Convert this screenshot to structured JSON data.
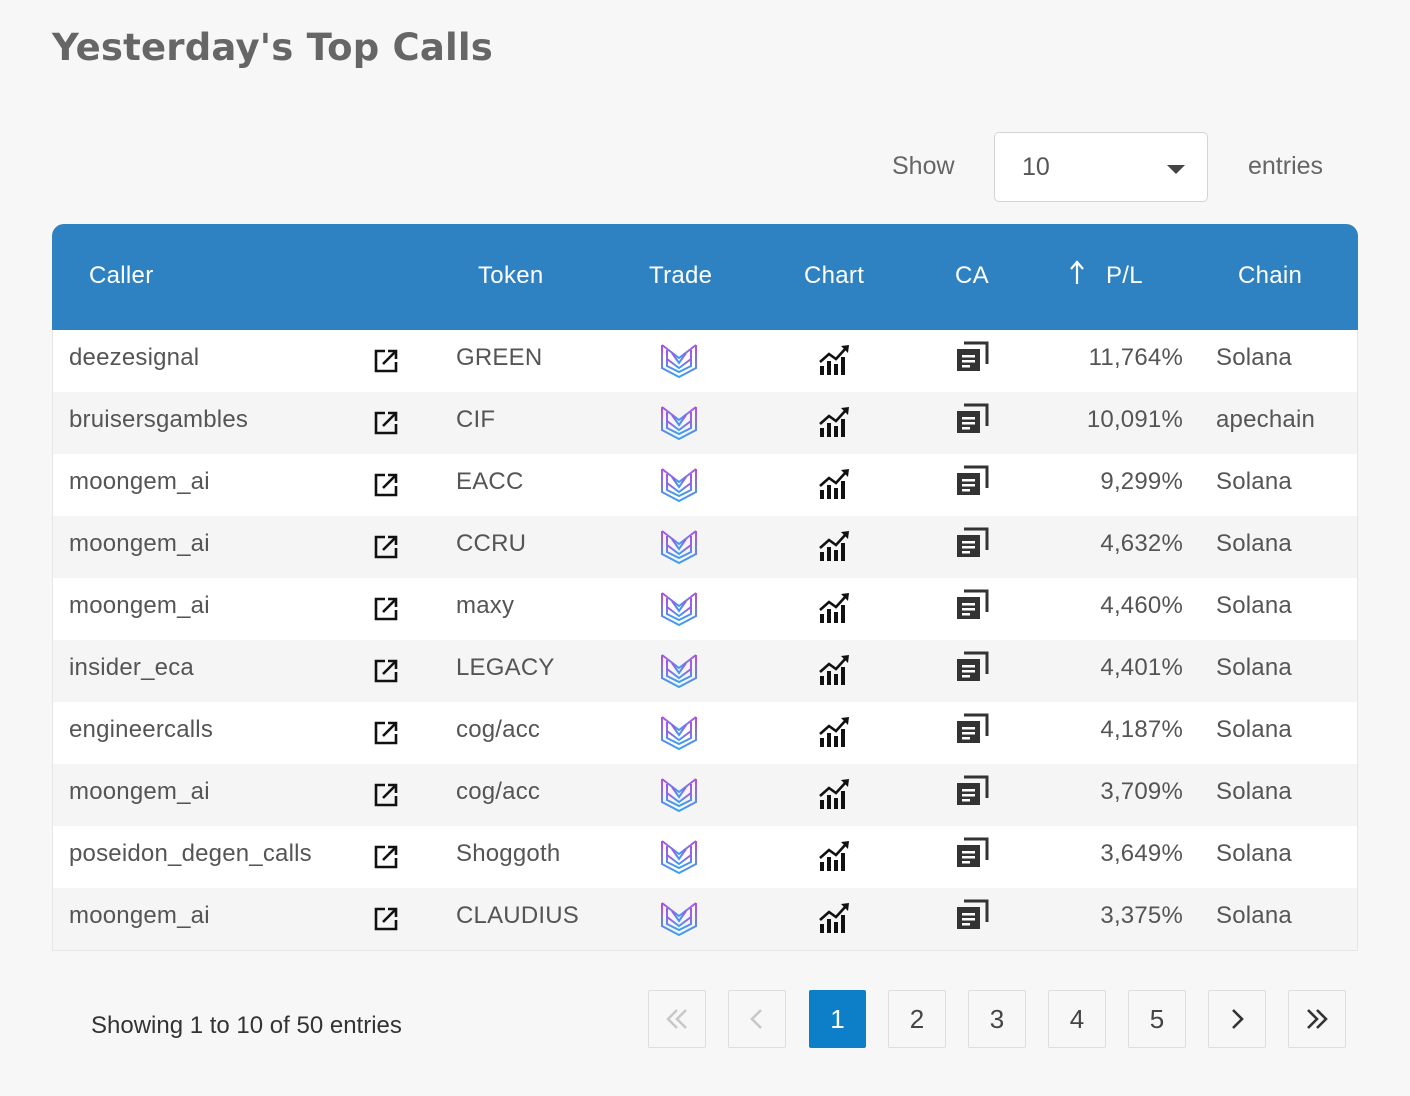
{
  "page": {
    "title": "Yesterday's Top Calls"
  },
  "length_menu": {
    "show_label": "Show",
    "selected": "10",
    "entries_label": "entries"
  },
  "table": {
    "headers": {
      "caller": "Caller",
      "token": "Token",
      "trade": "Trade",
      "chart": "Chart",
      "ca": "CA",
      "pl": "P/L",
      "chain": "Chain"
    },
    "rows": [
      {
        "caller": "deezesignal",
        "token": "GREEN",
        "pl": "11,764%",
        "chain": "Solana"
      },
      {
        "caller": "bruisersgambles",
        "token": "CIF",
        "pl": "10,091%",
        "chain": "apechain"
      },
      {
        "caller": "moongem_ai",
        "token": "EACC",
        "pl": "9,299%",
        "chain": "Solana"
      },
      {
        "caller": "moongem_ai",
        "token": "CCRU",
        "pl": "4,632%",
        "chain": "Solana"
      },
      {
        "caller": "moongem_ai",
        "token": "maxy",
        "pl": "4,460%",
        "chain": "Solana"
      },
      {
        "caller": "insider_eca",
        "token": "LEGACY",
        "pl": "4,401%",
        "chain": "Solana"
      },
      {
        "caller": "engineercalls",
        "token": "cog/acc",
        "pl": "4,187%",
        "chain": "Solana"
      },
      {
        "caller": "moongem_ai",
        "token": "cog/acc",
        "pl": "3,709%",
        "chain": "Solana"
      },
      {
        "caller": "poseidon_degen_calls",
        "token": "Shoggoth",
        "pl": "3,649%",
        "chain": "Solana"
      },
      {
        "caller": "moongem_ai",
        "token": "CLAUDIUS",
        "pl": "3,375%",
        "chain": "Solana"
      }
    ],
    "icons": {
      "caller_link": "external-link-icon",
      "trade": "trade-logo-icon",
      "chart": "chart-growth-icon",
      "ca": "copy-icon",
      "sort": "sort-ascending-arrow-icon"
    }
  },
  "info": {
    "text": "Showing 1 to 10 of 50 entries"
  },
  "pagination": {
    "first": "«",
    "prev": "‹",
    "pages": [
      "1",
      "2",
      "3",
      "4",
      "5"
    ],
    "current": "1",
    "next": "›",
    "last": "»"
  },
  "colors": {
    "header_bg": "#2e82c2",
    "active_page": "#0d7fc9",
    "logo_gradient_start": "#b44ee0",
    "logo_gradient_end": "#3aa0f0"
  }
}
